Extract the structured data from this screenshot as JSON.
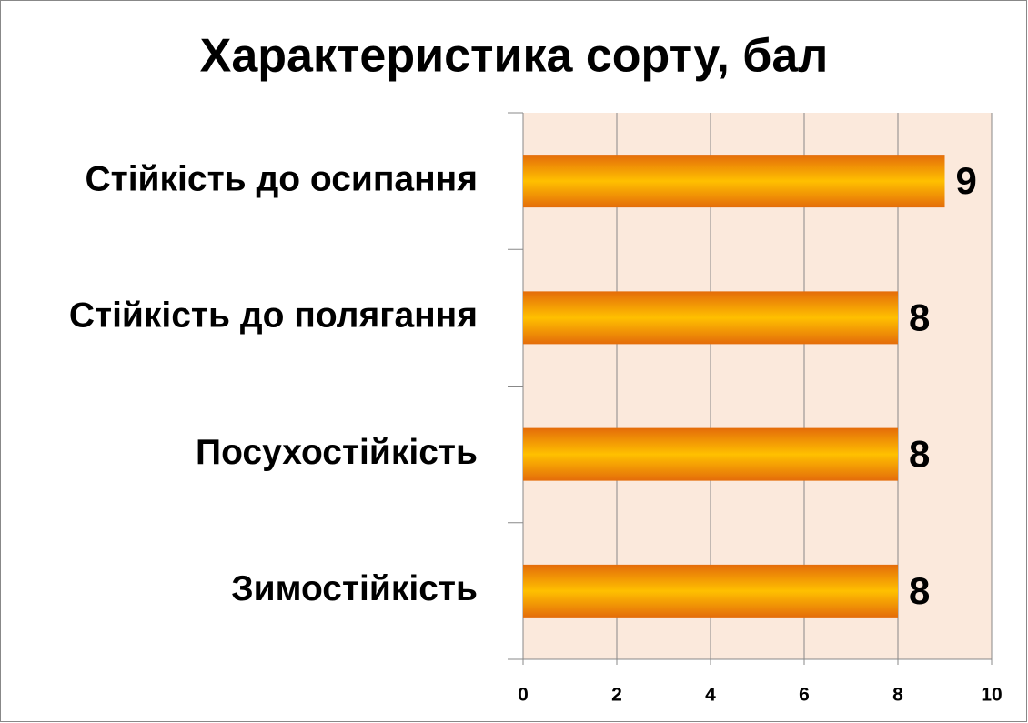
{
  "chart_data": {
    "type": "bar",
    "title": "Характеристика сорту, бал",
    "categories": [
      "Стійкість до осипання",
      "Стійкість до полягання",
      "Посухостійкість",
      "Зимостійкість"
    ],
    "values": [
      9,
      8,
      8,
      8
    ],
    "color": "#ffc000",
    "xlim": [
      0,
      10
    ],
    "xticks": [
      0,
      2,
      4,
      6,
      8,
      10
    ],
    "grid": true
  }
}
